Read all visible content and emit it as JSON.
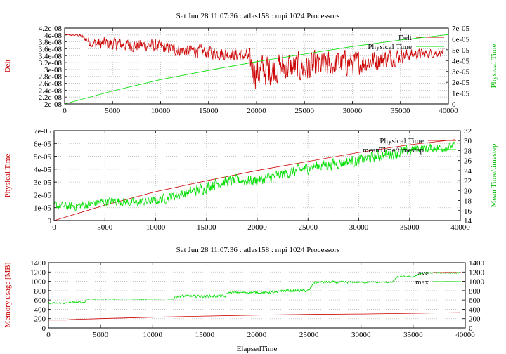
{
  "figure_title_top": "Sat Jun 28 11:07:36 : atlas158 : mpi 1024 Processors",
  "figure_title_mid": "Sat Jun 28 11:07:36 : atlas158 : mpi 1024 Processors",
  "colors": {
    "red": "#cc0000",
    "green": "#00dd00",
    "grid": "#bbbbbb",
    "axis": "#000000",
    "delt_label": "#cc0000",
    "physical_label": "#00bb00",
    "mean_label": "#00bb00",
    "memory_label": "#cc0000"
  },
  "chart_data": [
    {
      "type": "line",
      "title": "Sat Jun 28 11:07:36 : atlas158 : mpi 1024 Processors",
      "xlim": [
        0,
        40000
      ],
      "x_ticks": [
        "0",
        "5000",
        "10000",
        "15000",
        "20000",
        "25000",
        "30000",
        "35000",
        "40000"
      ],
      "ylabel": "Delt",
      "ylim": [
        2e-08,
        4.2e-08
      ],
      "y_ticks": [
        "2e-08",
        "2.2e-08",
        "2.4e-08",
        "2.6e-08",
        "2.8e-08",
        "3e-08",
        "3.2e-08",
        "3.4e-08",
        "3.6e-08",
        "3.8e-08",
        "4e-08",
        "4.2e-08"
      ],
      "y2label": "Physical Time",
      "y2lim": [
        0,
        7e-05
      ],
      "y2_ticks": [
        "0",
        "1e-05",
        "2e-05",
        "3e-05",
        "4e-05",
        "5e-05",
        "6e-05",
        "7e-05"
      ],
      "grid": true,
      "legend_position": "top-right",
      "series": [
        {
          "name": "Delt",
          "axis": "left",
          "color": "red",
          "x": [
            0,
            1500,
            3000,
            5000,
            7000,
            9000,
            11000,
            13000,
            15000,
            17000,
            19000,
            19500,
            20000,
            21000,
            23000,
            25000,
            27000,
            29000,
            31000,
            33000,
            35000,
            37000,
            39500
          ],
          "y": [
            4e-08,
            4e-08,
            3.75e-08,
            3.75e-08,
            3.7e-08,
            3.7e-08,
            3.6e-08,
            3.55e-08,
            3.5e-08,
            3.45e-08,
            3.4e-08,
            3.1e-08,
            2.9e-08,
            3e-08,
            3.1e-08,
            3.05e-08,
            3.1e-08,
            3.2e-08,
            3.2e-08,
            3.3e-08,
            3.4e-08,
            3.45e-08,
            3.5e-08
          ],
          "spread": [
            2e-10,
            5e-10,
            2.5e-09,
            2.5e-09,
            2.5e-09,
            2.5e-09,
            2.5e-09,
            2.5e-09,
            2.5e-09,
            2.5e-09,
            2.5e-09,
            6e-09,
            7e-09,
            6.5e-09,
            6e-09,
            6e-09,
            5.5e-09,
            5e-09,
            4.5e-09,
            4e-09,
            3e-09,
            2e-09,
            1.5e-09
          ]
        },
        {
          "name": "Physical Time",
          "axis": "right",
          "color": "green",
          "x": [
            0,
            5000,
            10000,
            15000,
            20000,
            25000,
            30000,
            35000,
            40000
          ],
          "y": [
            0,
            1.2e-05,
            2.25e-05,
            3.1e-05,
            3.9e-05,
            4.6e-05,
            5.3e-05,
            5.9e-05,
            6.4e-05
          ]
        }
      ]
    },
    {
      "type": "line",
      "xlim": [
        0,
        40000
      ],
      "x_ticks": [
        "0",
        "5000",
        "10000",
        "15000",
        "20000",
        "25000",
        "30000",
        "35000",
        "40000"
      ],
      "ylabel": "Physical Time",
      "ylim": [
        0,
        7e-05
      ],
      "y_ticks": [
        "0",
        "1e-05",
        "2e-05",
        "3e-05",
        "4e-05",
        "5e-05",
        "6e-05",
        "7e-05"
      ],
      "y2label": "Mean Time/timestep",
      "y2lim": [
        14,
        32
      ],
      "y2_ticks": [
        "14",
        "16",
        "18",
        "20",
        "22",
        "24",
        "26",
        "28",
        "30",
        "32"
      ],
      "grid": true,
      "legend_position": "top-right",
      "series": [
        {
          "name": "Physical Time",
          "axis": "left",
          "color": "red",
          "x": [
            0,
            5000,
            10000,
            15000,
            20000,
            25000,
            30000,
            35000,
            39500
          ],
          "y": [
            0,
            1.2e-05,
            2.25e-05,
            3.1e-05,
            3.9e-05,
            4.6e-05,
            5.3e-05,
            5.9e-05,
            6.3e-05
          ]
        },
        {
          "name": "meanTime/timestep",
          "axis": "right",
          "color": "green",
          "x": [
            0,
            2000,
            4000,
            6000,
            8000,
            10000,
            12000,
            14000,
            16000,
            18000,
            20000,
            22000,
            24000,
            26000,
            28000,
            30000,
            32000,
            34000,
            36000,
            38000,
            39500
          ],
          "y": [
            17,
            16.8,
            17.5,
            18,
            17.5,
            18,
            19,
            20,
            21.5,
            22,
            22,
            23,
            24,
            25,
            25.5,
            26,
            27,
            27.5,
            28.5,
            28.5,
            29
          ],
          "spread": [
            1.2,
            1.2,
            1.2,
            1.2,
            1.2,
            1.2,
            1.3,
            1.5,
            1.5,
            1.5,
            1.5,
            1.5,
            1.5,
            1.5,
            1.5,
            1.5,
            1.5,
            1.5,
            1.2,
            1.2,
            1.0
          ]
        }
      ]
    },
    {
      "type": "line",
      "title": "Sat Jun 28 11:07:36 : atlas158 : mpi 1024 Processors",
      "xlabel": "ElapsedTime",
      "xlim": [
        0,
        40000
      ],
      "x_ticks": [
        "0",
        "5000",
        "10000",
        "15000",
        "20000",
        "25000",
        "30000",
        "35000",
        "40000"
      ],
      "ylabel": "Memory usage [MB]",
      "ylim": [
        0,
        1400
      ],
      "y_ticks": [
        "0",
        "200",
        "400",
        "600",
        "800",
        "1000",
        "1200",
        "1400"
      ],
      "y2lim": [
        0,
        1400
      ],
      "y2_ticks": [
        "0",
        "200",
        "400",
        "600",
        "800",
        "1000",
        "1200",
        "1400"
      ],
      "grid": true,
      "legend_position": "top-right",
      "series": [
        {
          "name": "ave",
          "color": "red",
          "x": [
            0,
            1800,
            2000,
            5000,
            10000,
            15000,
            20000,
            25000,
            30000,
            35000,
            39500
          ],
          "y": [
            170,
            170,
            180,
            200,
            230,
            255,
            275,
            290,
            300,
            315,
            330
          ]
        },
        {
          "name": "max",
          "color": "green",
          "x": [
            0,
            1800,
            2000,
            3500,
            3600,
            12000,
            12200,
            17000,
            17200,
            22000,
            22200,
            25000,
            25500,
            33000,
            33500,
            35000,
            36000,
            39500
          ],
          "y": [
            530,
            530,
            550,
            550,
            620,
            620,
            680,
            680,
            760,
            760,
            800,
            800,
            980,
            980,
            1100,
            1100,
            1180,
            1180
          ],
          "spread": [
            25,
            25,
            25,
            25,
            10,
            10,
            40,
            40,
            30,
            30,
            40,
            40,
            40,
            20,
            20,
            20,
            20,
            20
          ]
        }
      ]
    }
  ]
}
